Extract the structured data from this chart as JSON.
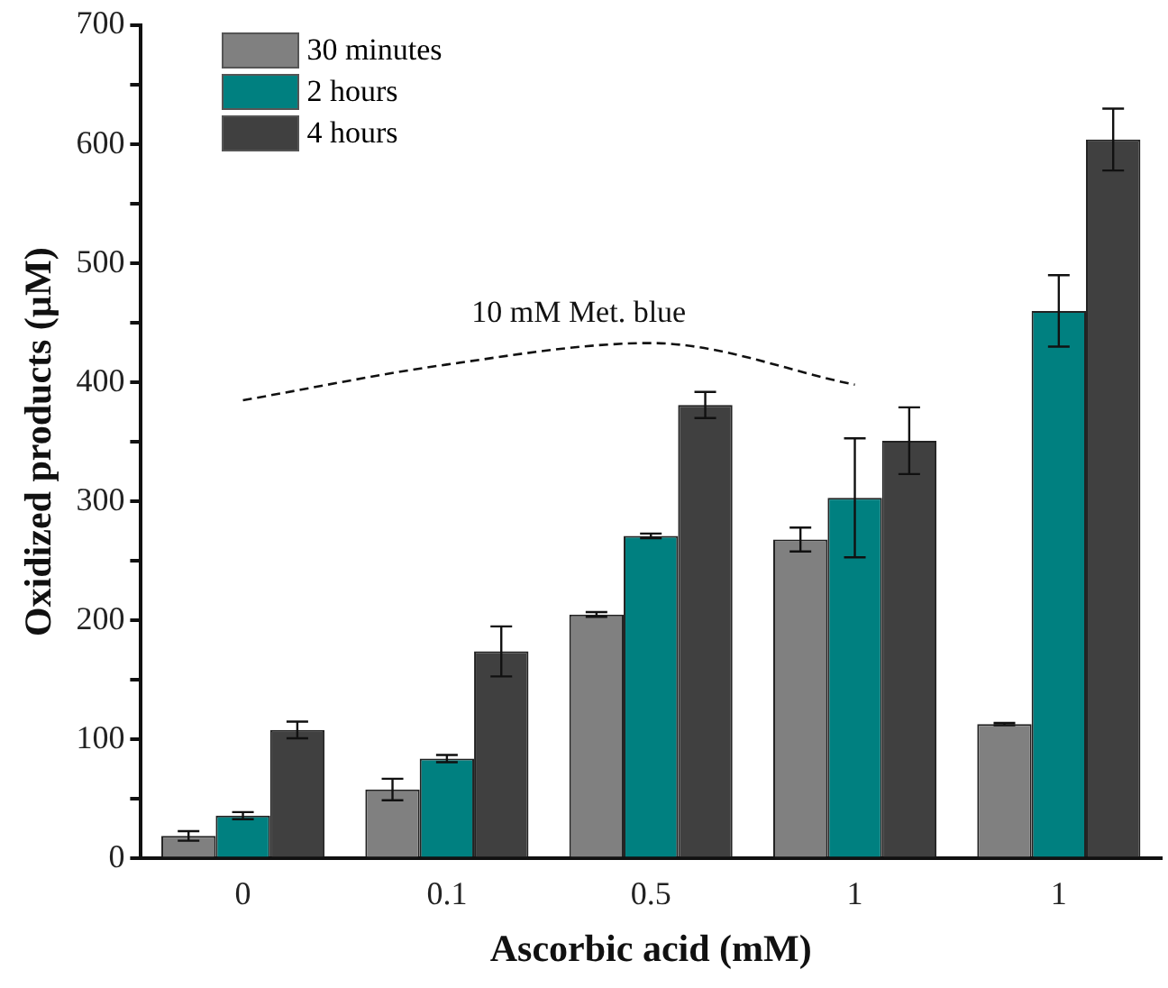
{
  "chart_data": {
    "type": "bar",
    "xlabel": "Ascorbic acid (mM)",
    "ylabel": "Oxidized products (µM)",
    "categories": [
      "0",
      "0.1",
      "0.5",
      "1",
      "1"
    ],
    "series": [
      {
        "name": "30 minutes",
        "color": "#808080",
        "values": [
          19,
          58,
          205,
          268,
          113
        ],
        "errors": [
          4,
          9,
          2,
          10,
          1
        ]
      },
      {
        "name": "2 hours",
        "color": "#008080",
        "values": [
          36,
          84,
          271,
          303,
          460
        ],
        "errors": [
          3,
          3,
          2,
          50,
          30
        ]
      },
      {
        "name": "4 hours",
        "color": "#404040",
        "values": [
          108,
          174,
          381,
          351,
          604
        ],
        "errors": [
          7,
          21,
          11,
          28,
          26
        ]
      },
      {
        "name": "10 mM Met. blue",
        "type": "line",
        "color": "#111111",
        "values": [
          385,
          415,
          433,
          398,
          null
        ],
        "line_style": "dashed",
        "marker": "none"
      }
    ],
    "ylim": [
      0,
      700
    ],
    "yticks": [
      0,
      {
        "value": 50,
        "label": null
      },
      100,
      {
        "value": 150,
        "label": null
      },
      200,
      {
        "value": 250,
        "label": null
      },
      300,
      {
        "value": 350,
        "label": null
      },
      400,
      {
        "value": 450,
        "label": null
      },
      500,
      {
        "value": 550,
        "label": null
      },
      600,
      {
        "value": 650,
        "label": null
      },
      700
    ],
    "legend": "top left",
    "grid": false
  }
}
